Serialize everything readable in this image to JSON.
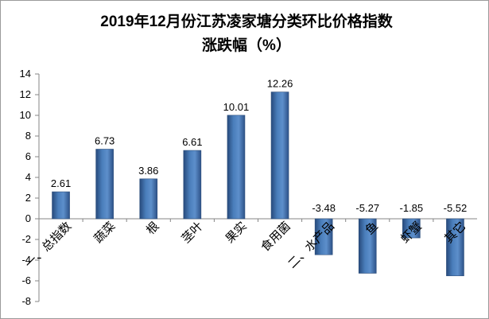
{
  "chart_data": {
    "type": "bar",
    "title_line1": "2019年12月份江苏凌家塘分类环比价格指数",
    "title_line2": "涨跌幅（%）",
    "categories": [
      "一、总指数",
      "蔬菜",
      "根",
      "茎叶",
      "果实",
      "食用菌",
      "二、水产品",
      "鱼",
      "虾蟹",
      "其它"
    ],
    "values": [
      2.61,
      6.73,
      3.86,
      6.61,
      10.01,
      12.26,
      -3.48,
      -5.27,
      -1.85,
      -5.52
    ],
    "value_labels": [
      "2.61",
      "6.73",
      "3.86",
      "6.61",
      "10.01",
      "12.26",
      "-3.48",
      "-5.27",
      "-1.85",
      "-5.52"
    ],
    "yticks": [
      "14",
      "12",
      "10",
      "8",
      "6",
      "4",
      "2",
      "0",
      "-2",
      "-4",
      "-6",
      "-8"
    ],
    "ylim": [
      -8,
      14
    ],
    "grid": false,
    "legend": "none",
    "bar_color": "#4a7ebb"
  }
}
